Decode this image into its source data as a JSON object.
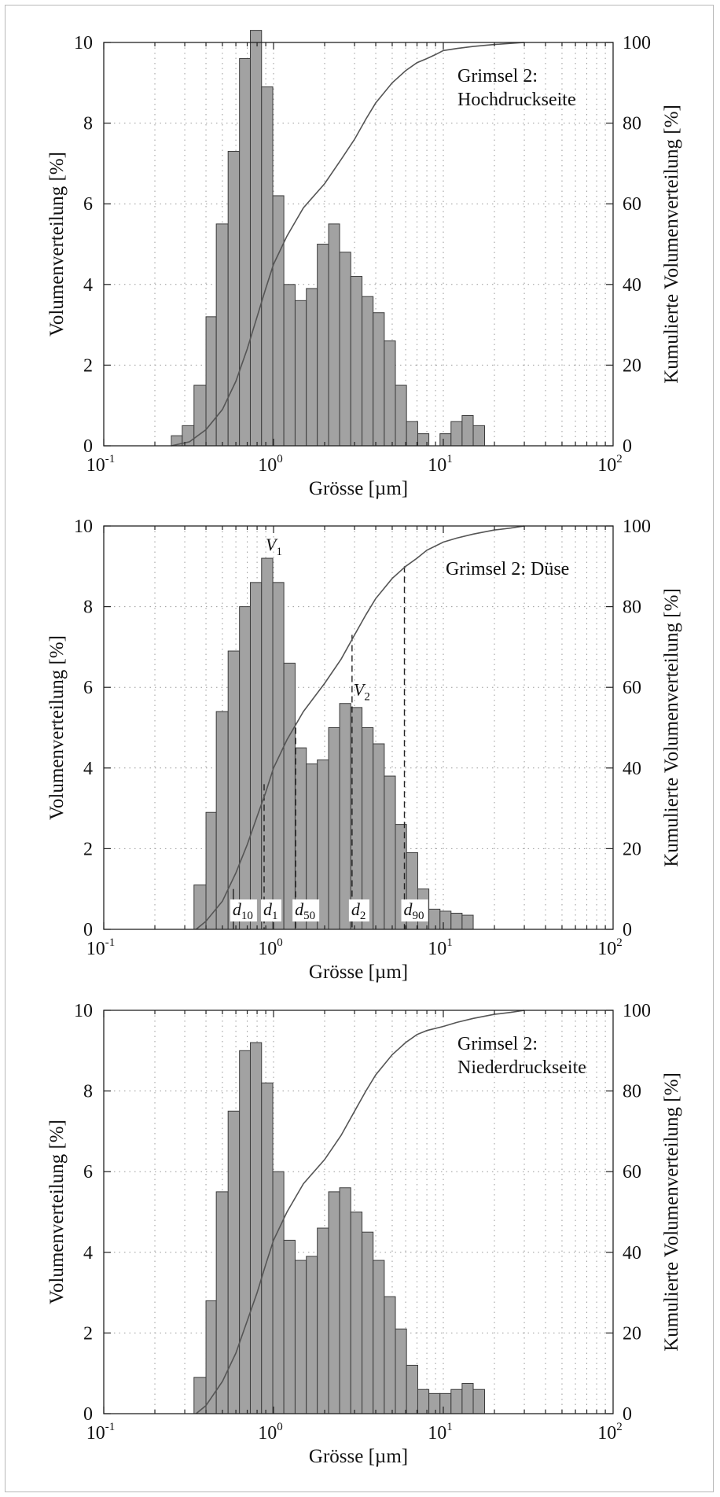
{
  "chart_data": [
    {
      "type": "bar",
      "annotation_lines": [
        "Grimsel 2:",
        "Hochdruckseite"
      ],
      "xlabel": "Grösse [µm]",
      "ylabel_left": "Volumenverteilung [%]",
      "ylabel_right": "Kumulierte Volumenverteilung [%]",
      "xscale": "log",
      "xlim": [
        0.1,
        100
      ],
      "ylim_left": [
        0,
        10
      ],
      "ylim_right": [
        0,
        100
      ],
      "grid": true,
      "x_ticks": [
        {
          "base": "10",
          "exp": "-1"
        },
        {
          "base": "10",
          "exp": "0"
        },
        {
          "base": "10",
          "exp": "1"
        },
        {
          "base": "10",
          "exp": "2"
        }
      ],
      "y_ticks_left": [
        "0",
        "2",
        "4",
        "6",
        "8",
        "10"
      ],
      "y_ticks_right": [
        "0",
        "20",
        "40",
        "60",
        "80",
        "100"
      ],
      "bar_edges_um": [
        0.25,
        0.29,
        0.34,
        0.4,
        0.46,
        0.54,
        0.63,
        0.73,
        0.85,
        0.99,
        1.15,
        1.34,
        1.56,
        1.81,
        2.11,
        2.45,
        2.85,
        3.32,
        3.86,
        4.49,
        5.22,
        6.07,
        7.07,
        8.22,
        9.56,
        11.1,
        12.9,
        15.0,
        17.5,
        20.4,
        23.7,
        27.6,
        32.1
      ],
      "values_percent": [
        0.25,
        0.5,
        1.5,
        3.2,
        5.5,
        7.3,
        9.6,
        10.3,
        8.9,
        6.2,
        4.0,
        3.6,
        3.9,
        5.0,
        5.5,
        4.8,
        4.2,
        3.7,
        3.3,
        2.6,
        1.5,
        0.6,
        0.3,
        0.0,
        0.3,
        0.6,
        0.75,
        0.5
      ],
      "cumulative": {
        "x": [
          0.25,
          0.32,
          0.4,
          0.5,
          0.6,
          0.7,
          0.8,
          0.9,
          1.0,
          1.2,
          1.5,
          2.0,
          2.5,
          3.0,
          3.5,
          4.0,
          5.0,
          6.0,
          7.0,
          8.0,
          9.0,
          10.0,
          12.0,
          15.0,
          20.0,
          30.0
        ],
        "y": [
          0,
          1,
          4,
          9,
          16,
          24,
          32,
          39,
          45,
          52,
          59,
          65,
          71,
          76,
          81,
          85,
          90,
          93,
          95,
          96,
          97,
          98,
          98.5,
          99,
          99.5,
          100
        ]
      }
    },
    {
      "type": "bar",
      "annotation_lines": [
        "Grimsel 2: Düse"
      ],
      "xlabel": "Grösse [µm]",
      "ylabel_left": "Volumenverteilung [%]",
      "ylabel_right": "Kumulierte Volumenverteilung [%]",
      "xscale": "log",
      "xlim": [
        0.1,
        100
      ],
      "ylim_left": [
        0,
        10
      ],
      "ylim_right": [
        0,
        100
      ],
      "grid": true,
      "x_ticks": [
        {
          "base": "10",
          "exp": "-1"
        },
        {
          "base": "10",
          "exp": "0"
        },
        {
          "base": "10",
          "exp": "1"
        },
        {
          "base": "10",
          "exp": "2"
        }
      ],
      "y_ticks_left": [
        "0",
        "2",
        "4",
        "6",
        "8",
        "10"
      ],
      "y_ticks_right": [
        "0",
        "20",
        "40",
        "60",
        "80",
        "100"
      ],
      "bar_edges_um": [
        0.34,
        0.4,
        0.46,
        0.54,
        0.63,
        0.73,
        0.85,
        0.99,
        1.15,
        1.34,
        1.56,
        1.81,
        2.11,
        2.45,
        2.85,
        3.32,
        3.86,
        4.49,
        5.22,
        6.07,
        7.07,
        8.22,
        9.56,
        11.1,
        12.9,
        15.0,
        17.5,
        20.4,
        23.7,
        27.6
      ],
      "values_percent": [
        1.1,
        2.9,
        5.4,
        6.9,
        8.0,
        8.6,
        9.2,
        8.6,
        6.6,
        4.5,
        4.1,
        4.2,
        5.0,
        5.6,
        5.5,
        5.0,
        4.6,
        3.8,
        2.6,
        1.9,
        1.0,
        0.5,
        0.45,
        0.4,
        0.35
      ],
      "cumulative": {
        "x": [
          0.35,
          0.4,
          0.5,
          0.6,
          0.7,
          0.8,
          0.9,
          1.0,
          1.2,
          1.5,
          2.0,
          2.5,
          3.0,
          3.5,
          4.0,
          5.0,
          6.0,
          7.0,
          8.0,
          10.0,
          12.0,
          15.0,
          20.0,
          25.0,
          30.0
        ],
        "y": [
          0,
          2,
          7,
          14,
          21,
          28,
          34,
          40,
          47,
          54,
          61,
          67,
          73,
          78,
          82,
          87,
          90,
          92,
          94,
          96,
          97,
          98,
          99,
          99.5,
          100
        ]
      },
      "markers": [
        {
          "label": "V",
          "sub": "1",
          "x": 0.88,
          "value": 9.2
        },
        {
          "label": "V",
          "sub": "2",
          "x": 2.9,
          "value": 5.6
        }
      ],
      "lines": [
        {
          "label": "d",
          "sub": "10",
          "x": 0.58,
          "cum_percent": 10,
          "dashed": false
        },
        {
          "label": "d",
          "sub": "1",
          "x": 0.88,
          "cum_percent": 36,
          "dashed": true
        },
        {
          "label": "d",
          "sub": "50",
          "x": 1.35,
          "cum_percent": 50,
          "dashed": true
        },
        {
          "label": "d",
          "sub": "2",
          "x": 2.9,
          "cum_percent": 73,
          "dashed": true
        },
        {
          "label": "d",
          "sub": "90",
          "x": 5.9,
          "cum_percent": 90,
          "dashed": true
        }
      ]
    },
    {
      "type": "bar",
      "annotation_lines": [
        "Grimsel 2:",
        "Niederdruckseite"
      ],
      "xlabel": "Grösse [µm]",
      "ylabel_left": "Volumenverteilung [%]",
      "ylabel_right": "Kumulierte Volumenverteilung [%]",
      "xscale": "log",
      "xlim": [
        0.1,
        100
      ],
      "ylim_left": [
        0,
        10
      ],
      "ylim_right": [
        0,
        100
      ],
      "grid": true,
      "x_ticks": [
        {
          "base": "10",
          "exp": "-1"
        },
        {
          "base": "10",
          "exp": "0"
        },
        {
          "base": "10",
          "exp": "1"
        },
        {
          "base": "10",
          "exp": "2"
        }
      ],
      "y_ticks_left": [
        "0",
        "2",
        "4",
        "6",
        "8",
        "10"
      ],
      "y_ticks_right": [
        "0",
        "20",
        "40",
        "60",
        "80",
        "100"
      ],
      "bar_edges_um": [
        0.34,
        0.4,
        0.46,
        0.54,
        0.63,
        0.73,
        0.85,
        0.99,
        1.15,
        1.34,
        1.56,
        1.81,
        2.11,
        2.45,
        2.85,
        3.32,
        3.86,
        4.49,
        5.22,
        6.07,
        7.07,
        8.22,
        9.56,
        11.1,
        12.9,
        15.0,
        17.5,
        20.4,
        23.7,
        27.6,
        32.1
      ],
      "values_percent": [
        0.9,
        2.8,
        5.5,
        7.5,
        9.0,
        9.2,
        8.2,
        6.0,
        4.3,
        3.8,
        3.9,
        4.6,
        5.5,
        5.6,
        5.0,
        4.5,
        3.8,
        2.9,
        2.1,
        1.2,
        0.6,
        0.5,
        0.5,
        0.6,
        0.75,
        0.6
      ],
      "cumulative": {
        "x": [
          0.35,
          0.4,
          0.5,
          0.6,
          0.7,
          0.8,
          0.9,
          1.0,
          1.2,
          1.5,
          2.0,
          2.5,
          3.0,
          3.5,
          4.0,
          5.0,
          6.0,
          7.0,
          8.0,
          10.0,
          12.0,
          15.0,
          20.0,
          25.0,
          30.0
        ],
        "y": [
          0,
          2,
          8,
          15,
          23,
          30,
          37,
          43,
          50,
          57,
          63,
          69,
          75,
          80,
          84,
          89,
          92,
          94,
          95,
          96,
          97,
          98,
          99,
          99.5,
          100
        ]
      }
    }
  ]
}
